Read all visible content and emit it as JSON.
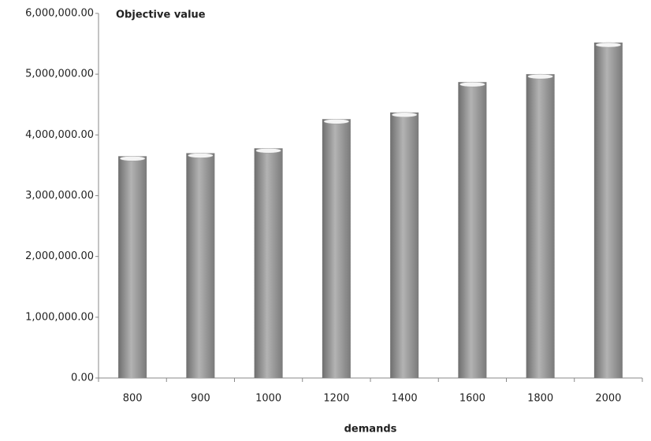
{
  "chart_data": {
    "type": "bar",
    "title": "Objective value",
    "x_label": "demands",
    "categories": [
      "800",
      "900",
      "1000",
      "1200",
      "1400",
      "1600",
      "1800",
      "2000"
    ],
    "values": [
      3650000,
      3700000,
      3780000,
      4260000,
      4370000,
      4870000,
      5000000,
      5520000
    ],
    "color": "#b3b3b3",
    "ylim": [
      0,
      6000000
    ],
    "yticks": [
      {
        "value": 0,
        "label": "0.00"
      },
      {
        "value": 1000000,
        "label": "1,000,000.00"
      },
      {
        "value": 2000000,
        "label": "2,000,000.00"
      },
      {
        "value": 3000000,
        "label": "3,000,000.00"
      },
      {
        "value": 4000000,
        "label": "4,000,000.00"
      },
      {
        "value": 5000000,
        "label": "5,000,000.00"
      },
      {
        "value": 6000000,
        "label": "6,000,000.00"
      }
    ],
    "grid": false
  }
}
